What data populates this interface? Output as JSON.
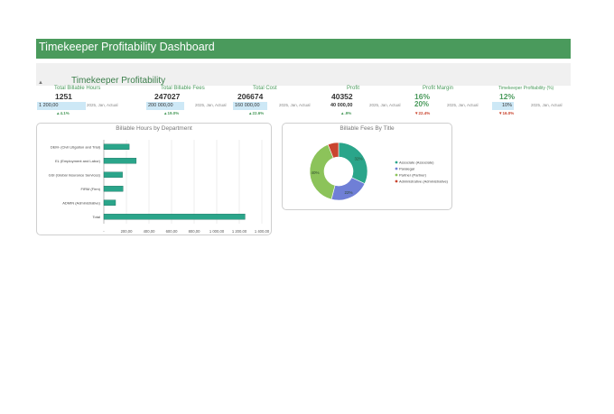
{
  "header": {
    "title": "Timekeeper Profitability Dashboard"
  },
  "kpi_band": {
    "title": "Timekeeper Profitability",
    "icon": "filter-icon"
  },
  "kpis": [
    {
      "label": "Total Billable Hours",
      "value": "1251",
      "target": "1 200,00",
      "period": "2025, Jan, Actual",
      "change": "▲4.1%"
    },
    {
      "label": "Total Billable Fees",
      "value": "247027",
      "target": "200 000,00",
      "period": "2025, Jan, Actual",
      "change": "▲19.0%"
    },
    {
      "label": "Total Cost",
      "value": "206674",
      "target": "160 000,00",
      "period": "2025, Jan, Actual",
      "change": "▲22.6%"
    },
    {
      "label": "Profit",
      "value": "40352",
      "target": "40 000,00",
      "period": "2025, Jan, Actual",
      "change": "▲.9%"
    },
    {
      "label": "Profit Margin",
      "value": "16%",
      "target": "20%",
      "period": "2025, Jan, Actual",
      "change": "▼22.4%"
    },
    {
      "label": "Timekeeper Profitability (%)",
      "value": "12%",
      "target": "10%",
      "period": "2025, Jan, Actual",
      "change": "▼16.0%"
    }
  ],
  "colors": {
    "header": "#4a9a5c",
    "bar": "#2aa58a",
    "associate": "#2aa58a",
    "paralegal": "#6f7fd6",
    "partner": "#8cc35a",
    "administrative": "#c9452f"
  },
  "chart_data": [
    {
      "type": "bar",
      "title": "Billable Hours by Department",
      "orientation": "horizontal",
      "categories": [
        "DEM- (Civil Litigation and Trial)",
        "EL (Employment and Labor)",
        "GSI (Global Insurance Services)",
        "FIRM (Firm)",
        "ADMIN (Administrative)",
        "Total"
      ],
      "values": [
        225,
        287,
        165,
        170,
        104,
        1251
      ],
      "xlim": [
        0,
        1400
      ],
      "ticks": [
        {
          "value": 0,
          "label": "-"
        },
        {
          "value": 200,
          "label": "200,00"
        },
        {
          "value": 400,
          "label": "400,00"
        },
        {
          "value": 600,
          "label": "600,00"
        },
        {
          "value": 800,
          "label": "800,00"
        },
        {
          "value": 1000,
          "label": "1 000,00"
        },
        {
          "value": 1200,
          "label": "1 200,00"
        },
        {
          "value": 1400,
          "label": "1 400,00"
        }
      ],
      "grid": true
    },
    {
      "type": "pie",
      "title": "Billable Fees By Title",
      "donut": true,
      "series": [
        {
          "name": "Associate (Associate)",
          "value": 32
        },
        {
          "name": "Paralegal",
          "value": 22
        },
        {
          "name": "Partner (Partner)",
          "value": 40
        },
        {
          "name": "Administrative (Administrative)",
          "value": 6
        }
      ],
      "labels": [
        "32%",
        "22%",
        "40%",
        ""
      ],
      "legend": "right"
    }
  ]
}
